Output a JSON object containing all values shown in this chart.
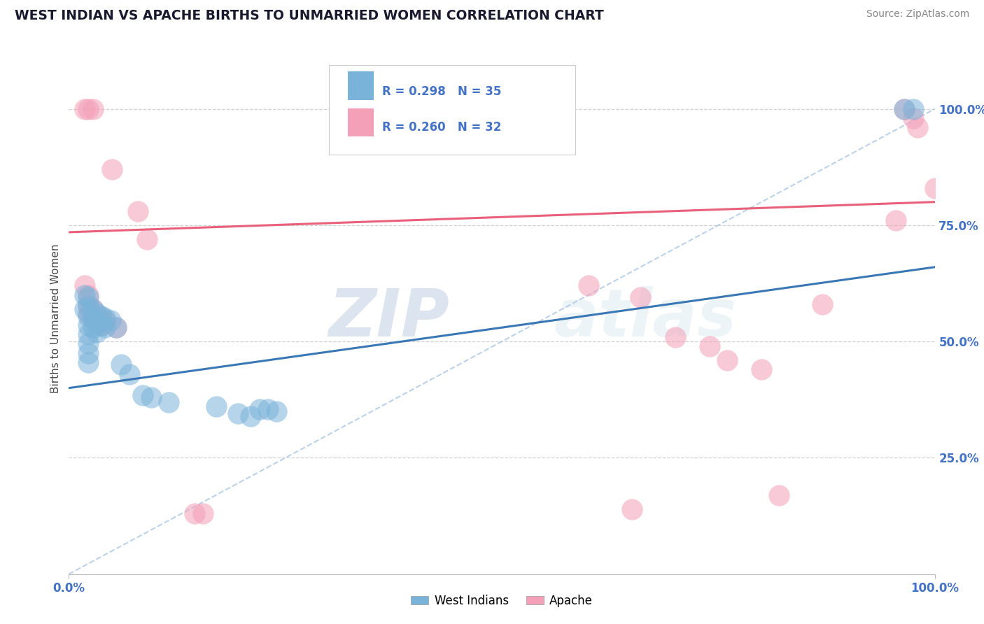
{
  "title": "WEST INDIAN VS APACHE BIRTHS TO UNMARRIED WOMEN CORRELATION CHART",
  "source": "Source: ZipAtlas.com",
  "ylabel": "Births to Unmarried Women",
  "legend_blue_label": "West Indians",
  "legend_pink_label": "Apache",
  "r_blue": 0.298,
  "n_blue": 35,
  "r_pink": 0.26,
  "n_pink": 32,
  "watermark_zip": "ZIP",
  "watermark_atlas": "atlas",
  "blue_color": "#7ab3d9",
  "pink_color": "#f4a0b8",
  "blue_line_color": "#3a78b5",
  "pink_line_color": "#e8607a",
  "diag_color": "#a0c0e0",
  "grid_color": "#cccccc",
  "tick_label_color": "#4472c4",
  "blue_scatter": [
    [
      0.018,
      0.6
    ],
    [
      0.018,
      0.57
    ],
    [
      0.022,
      0.595
    ],
    [
      0.022,
      0.575
    ],
    [
      0.022,
      0.555
    ],
    [
      0.022,
      0.535
    ],
    [
      0.022,
      0.515
    ],
    [
      0.022,
      0.495
    ],
    [
      0.022,
      0.475
    ],
    [
      0.022,
      0.455
    ],
    [
      0.028,
      0.57
    ],
    [
      0.028,
      0.55
    ],
    [
      0.028,
      0.53
    ],
    [
      0.032,
      0.56
    ],
    [
      0.032,
      0.54
    ],
    [
      0.032,
      0.52
    ],
    [
      0.038,
      0.555
    ],
    [
      0.038,
      0.535
    ],
    [
      0.042,
      0.55
    ],
    [
      0.042,
      0.53
    ],
    [
      0.048,
      0.545
    ],
    [
      0.055,
      0.53
    ],
    [
      0.06,
      0.45
    ],
    [
      0.07,
      0.43
    ],
    [
      0.085,
      0.385
    ],
    [
      0.095,
      0.38
    ],
    [
      0.115,
      0.37
    ],
    [
      0.17,
      0.36
    ],
    [
      0.195,
      0.345
    ],
    [
      0.21,
      0.34
    ],
    [
      0.22,
      0.355
    ],
    [
      0.23,
      0.355
    ],
    [
      0.24,
      0.35
    ],
    [
      0.965,
      1.0
    ],
    [
      0.975,
      1.0
    ]
  ],
  "pink_scatter": [
    [
      0.018,
      1.0
    ],
    [
      0.022,
      1.0
    ],
    [
      0.028,
      1.0
    ],
    [
      0.05,
      0.87
    ],
    [
      0.08,
      0.78
    ],
    [
      0.09,
      0.72
    ],
    [
      0.018,
      0.62
    ],
    [
      0.022,
      0.6
    ],
    [
      0.022,
      0.58
    ],
    [
      0.022,
      0.56
    ],
    [
      0.028,
      0.57
    ],
    [
      0.028,
      0.55
    ],
    [
      0.035,
      0.555
    ],
    [
      0.035,
      0.535
    ],
    [
      0.042,
      0.545
    ],
    [
      0.055,
      0.53
    ],
    [
      0.145,
      0.13
    ],
    [
      0.155,
      0.13
    ],
    [
      0.6,
      0.62
    ],
    [
      0.66,
      0.595
    ],
    [
      0.7,
      0.51
    ],
    [
      0.74,
      0.49
    ],
    [
      0.76,
      0.46
    ],
    [
      0.8,
      0.44
    ],
    [
      0.82,
      0.17
    ],
    [
      0.87,
      0.58
    ],
    [
      0.955,
      0.76
    ],
    [
      0.965,
      1.0
    ],
    [
      0.975,
      0.98
    ],
    [
      0.98,
      0.96
    ],
    [
      1.0,
      0.83
    ],
    [
      0.65,
      0.14
    ]
  ],
  "blue_line": [
    [
      0.0,
      0.4
    ],
    [
      1.0,
      0.66
    ]
  ],
  "pink_line": [
    [
      0.0,
      0.735
    ],
    [
      1.0,
      0.8
    ]
  ],
  "diag_line": [
    [
      0.0,
      0.0
    ],
    [
      1.0,
      1.0
    ]
  ],
  "ylim": [
    0.0,
    1.1
  ],
  "xlim": [
    0.0,
    1.0
  ],
  "yticks": [
    0.25,
    0.5,
    0.75,
    1.0
  ],
  "ytick_labels": [
    "25.0%",
    "50.0%",
    "75.0%",
    "100.0%"
  ]
}
